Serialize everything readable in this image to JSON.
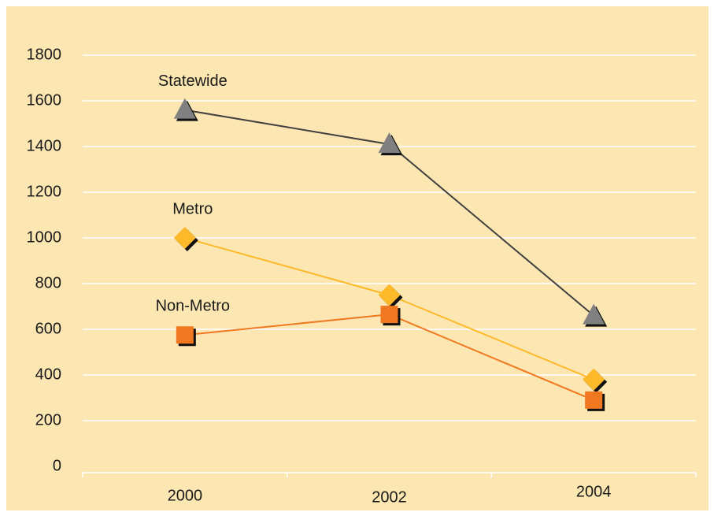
{
  "chart_data": {
    "type": "line",
    "categories": [
      "2000",
      "2002",
      "2004"
    ],
    "series": [
      {
        "name": "Statewide",
        "color": "#808080",
        "line_color": "#404040",
        "marker": "triangle",
        "values": [
          1560,
          1410,
          660
        ]
      },
      {
        "name": "Metro",
        "color": "#fdb92a",
        "line_color": "#fdb92a",
        "marker": "diamond",
        "values": [
          1000,
          750,
          380
        ]
      },
      {
        "name": "Non-Metro",
        "color": "#f07820",
        "line_color": "#f07820",
        "marker": "square",
        "values": [
          575,
          665,
          290
        ]
      }
    ],
    "ylim": [
      0,
      1800
    ],
    "yticks": [
      0,
      200,
      400,
      600,
      800,
      1000,
      1200,
      1400,
      1600,
      1800
    ],
    "grid": true,
    "background": "#fce6b2",
    "grid_color": "#ffffff"
  }
}
